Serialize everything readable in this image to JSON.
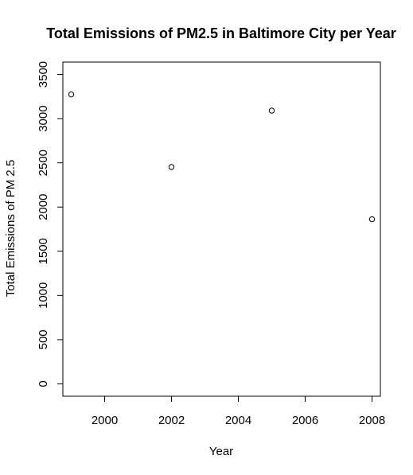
{
  "chart_data": {
    "type": "scatter",
    "title": "Total Emissions of PM2.5 in Baltimore City per Year",
    "xlabel": "Year",
    "ylabel": "Total Emissions of PM 2.5",
    "xlim": [
      1998.75,
      2008.25
    ],
    "ylim": [
      -140,
      3640
    ],
    "x_ticks": [
      2000,
      2002,
      2004,
      2006,
      2008
    ],
    "y_ticks": [
      0,
      500,
      1000,
      1500,
      2000,
      2500,
      3000,
      3500
    ],
    "grid": false,
    "series": [
      {
        "x": [
          1999,
          2002,
          2005,
          2008
        ],
        "values": [
          3274,
          2453,
          3091,
          1862
        ]
      }
    ],
    "colors": {
      "point": "#000000",
      "axis": "#000000",
      "background": "#ffffff"
    },
    "point_marker": "open-circle"
  }
}
